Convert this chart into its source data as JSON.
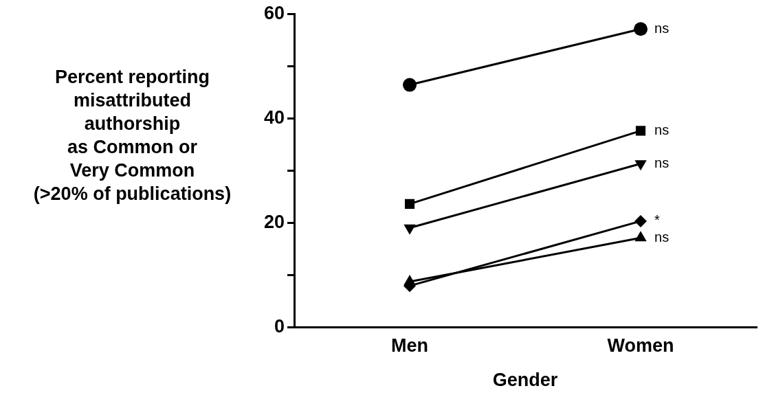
{
  "chart_data": {
    "type": "line",
    "xlabel": "Gender",
    "ylabel": "Percent reporting\nmisattributed\nauthorship\nas Common or\nVery Common\n(>20% of publications)",
    "categories": [
      "Men",
      "Women"
    ],
    "series": [
      {
        "color": "#000000",
        "marker": "circle",
        "values": [
          46.4,
          57.1
        ]
      },
      {
        "color": "#000000",
        "marker": "square",
        "values": [
          23.6,
          37.6
        ]
      },
      {
        "color": "#000000",
        "marker": "triangle-down",
        "values": [
          19.0,
          31.3
        ]
      },
      {
        "color": "#000000",
        "marker": "diamond",
        "values": [
          7.9,
          20.3
        ]
      },
      {
        "color": "#000000",
        "marker": "triangle",
        "values": [
          8.7,
          17.1
        ]
      }
    ],
    "ylim": [
      0,
      60
    ],
    "yticks": [
      0,
      {
        "value": 10,
        "label": null
      },
      20,
      {
        "value": 30,
        "label": null
      },
      40,
      {
        "value": 50,
        "label": null
      },
      60
    ],
    "grid": false,
    "legend": false,
    "line_style": "solid",
    "annotations": [
      {
        "text": "ns",
        "x": "Women",
        "y": 57.1
      },
      {
        "text": "ns",
        "x": "Women",
        "y": 37.6
      },
      {
        "text": "ns",
        "x": "Women",
        "y": 31.3
      },
      {
        "text": "*",
        "x": "Women",
        "y": 20.3
      },
      {
        "text": "ns",
        "x": "Women",
        "y": 17.1
      }
    ]
  }
}
